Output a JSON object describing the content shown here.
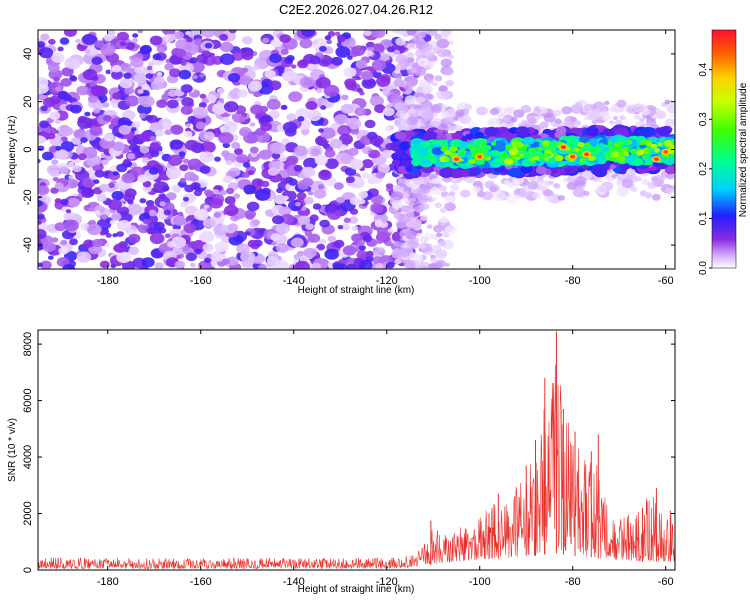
{
  "title": "C2E2.2026.027.04.26.R12",
  "colors": {
    "snr_line": "#e8302a",
    "frame": "#000000"
  },
  "chart_data": [
    {
      "type": "heatmap",
      "xlabel": "Height of straight line (km)",
      "ylabel": "Frequency (Hz)",
      "xlim": [
        -195,
        -58
      ],
      "ylim": [
        -50,
        50
      ],
      "xticks": [
        -180,
        -160,
        -140,
        -120,
        -100,
        -80,
        -60
      ],
      "yticks": [
        -40,
        -20,
        0,
        20,
        40
      ],
      "colorbar": {
        "label": "Normalized spectral amplitude",
        "range": [
          0.0,
          0.48
        ],
        "ticks": [
          "0.0",
          "0.1",
          "0.2",
          "0.3",
          "0.4"
        ],
        "tick_values": [
          0.0,
          0.1,
          0.2,
          0.3,
          0.4
        ],
        "colormap": "rainbow (violet-blue-cyan-green-yellow-red)"
      },
      "description_of_content": {
        "noise_region": {
          "x_range": [
            -195,
            -112
          ],
          "y_range": [
            -50,
            50
          ],
          "amplitude": [
            0.0,
            0.1
          ]
        },
        "signal_band": {
          "x_range": [
            -118,
            -58
          ],
          "y_center_start": -2,
          "y_center_end": 0,
          "half_width_hz": 7,
          "amplitude": [
            0.05,
            0.48
          ]
        },
        "peak_points": [
          {
            "x": -105,
            "y": -4,
            "value": 0.45
          },
          {
            "x": -100,
            "y": -3,
            "value": 0.44
          },
          {
            "x": -82,
            "y": 1,
            "value": 0.46
          },
          {
            "x": -80,
            "y": -3,
            "value": 0.45
          },
          {
            "x": -77,
            "y": -2,
            "value": 0.45
          },
          {
            "x": -62,
            "y": -4,
            "value": 0.45
          },
          {
            "x": -60,
            "y": -1,
            "value": 0.43
          }
        ]
      }
    },
    {
      "type": "line",
      "xlabel": "Height of straight line (km)",
      "ylabel": "SNR (10 * v/v)",
      "xlim": [
        -195,
        -58
      ],
      "ylim": [
        0,
        8500
      ],
      "xticks": [
        -180,
        -160,
        -140,
        -120,
        -100,
        -80,
        -60
      ],
      "yticks": [
        0,
        2000,
        4000,
        6000,
        8000
      ],
      "series": [
        {
          "envelope": {
            "x": [
              -195,
              -170,
              -150,
              -130,
              -120,
              -115,
              -112,
              -110,
              -108,
              -105,
              -100,
              -97,
              -95,
              -92,
              -90,
              -88,
              -86,
              -84,
              -82,
              -80,
              -78,
              -76,
              -74,
              -72,
              -70,
              -68,
              -66,
              -64,
              -62,
              -60,
              -58
            ],
            "y_low": [
              50,
              50,
              50,
              50,
              60,
              80,
              120,
              200,
              250,
              300,
              350,
              400,
              400,
              450,
              500,
              500,
              550,
              600,
              550,
              500,
              500,
              450,
              400,
              400,
              350,
              350,
              300,
              300,
              300,
              300,
              300
            ],
            "y_high": [
              450,
              420,
              430,
              420,
              450,
              500,
              900,
              1700,
              1200,
              1500,
              1900,
              2500,
              2300,
              3000,
              3600,
              4600,
              6800,
              8400,
              5700,
              4900,
              4300,
              4800,
              3000,
              2200,
              1800,
              2100,
              2000,
              2800,
              2500,
              1900,
              2100
            ]
          },
          "spikes": [
            {
              "x": -110.5,
              "y": 1750
            },
            {
              "x": -98,
              "y": 2000
            },
            {
              "x": -96,
              "y": 2700
            },
            {
              "x": -90,
              "y": 3700
            },
            {
              "x": -88,
              "y": 4600
            },
            {
              "x": -86,
              "y": 6800
            },
            {
              "x": -83.5,
              "y": 8450
            },
            {
              "x": -82,
              "y": 5700
            },
            {
              "x": -79.5,
              "y": 4900
            },
            {
              "x": -76,
              "y": 4200
            },
            {
              "x": -74.5,
              "y": 4800
            },
            {
              "x": -65,
              "y": 2200
            },
            {
              "x": -62,
              "y": 2900
            },
            {
              "x": -59,
              "y": 2100
            }
          ]
        }
      ]
    }
  ]
}
